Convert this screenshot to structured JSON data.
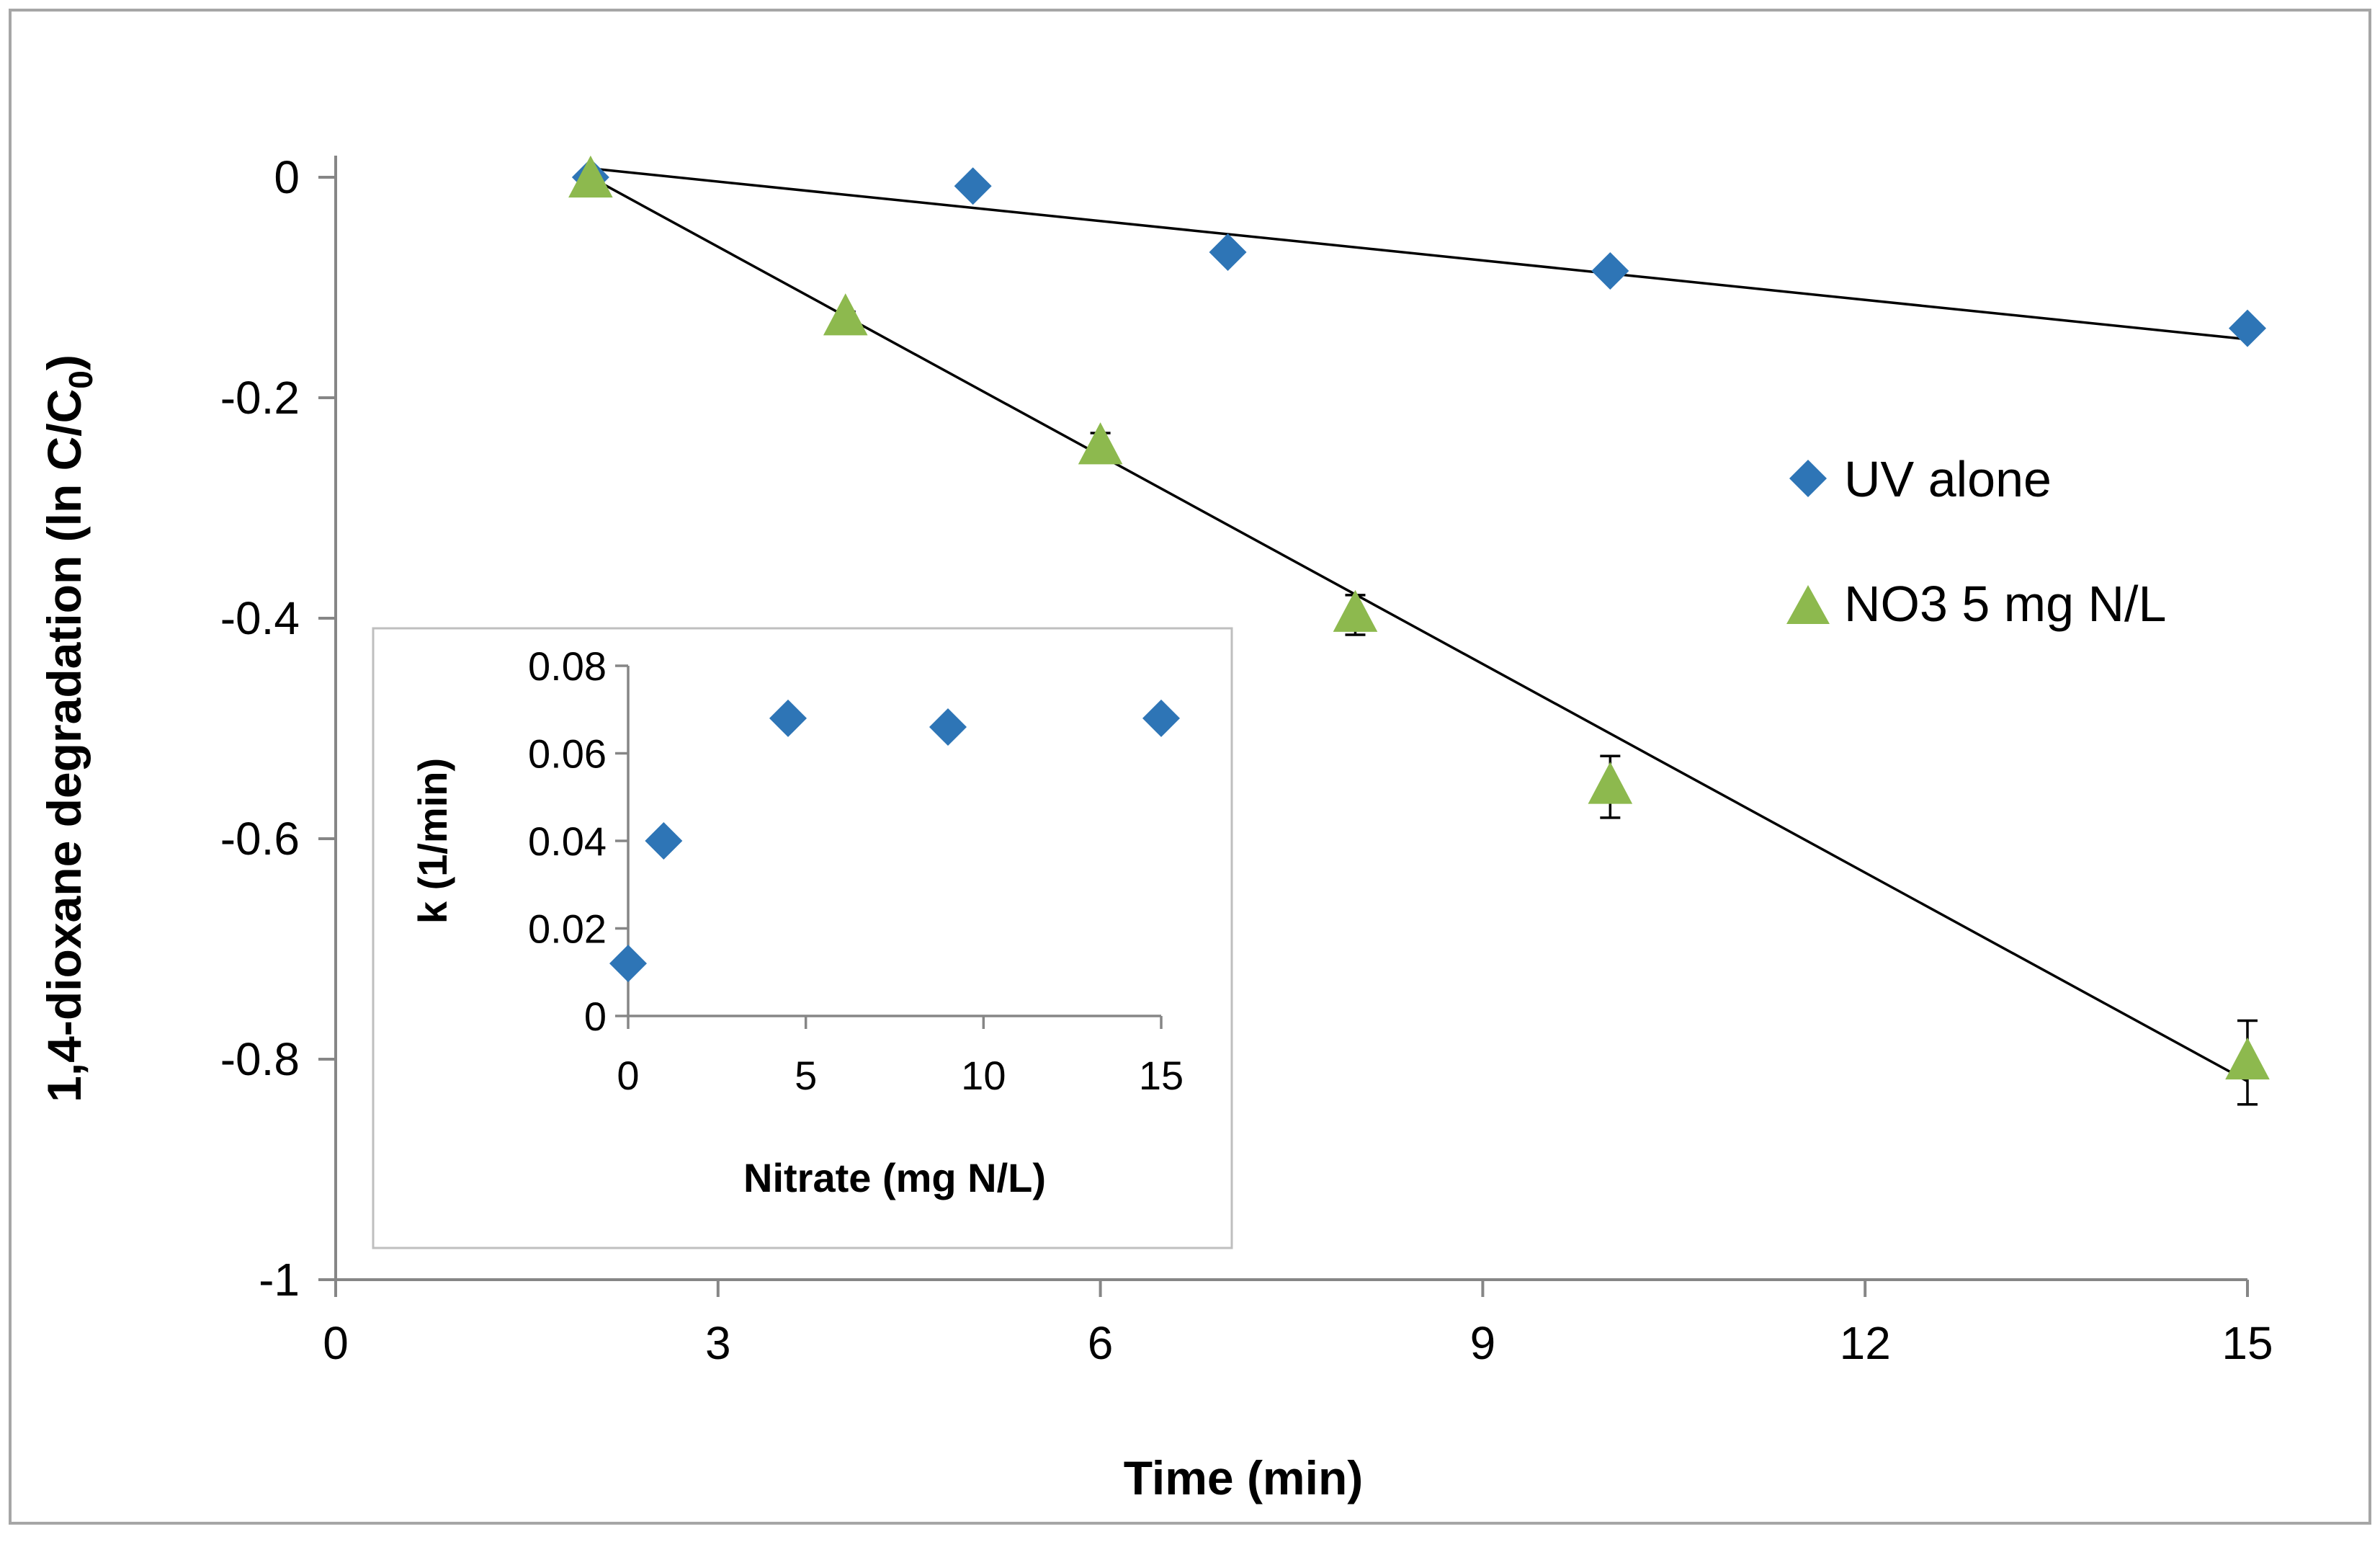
{
  "chart_data": [
    {
      "id": "main",
      "type": "scatter",
      "title": "",
      "xlabel": "Time (min)",
      "ylabel": "1,4-dioxane degradation  (ln C/C",
      "ylabel_subscript": "0",
      "ylabel_suffix": ")",
      "xlim": [
        0,
        15
      ],
      "ylim": [
        -1,
        0
      ],
      "xticks": [
        0,
        3,
        6,
        9,
        12,
        15
      ],
      "yticks": [
        0,
        -0.2,
        -0.4,
        -0.6,
        -0.8,
        -1
      ],
      "xtick_labels": [
        "0",
        "3",
        "6",
        "9",
        "12",
        "15"
      ],
      "ytick_labels": [
        "0",
        "-0.2",
        "-0.4",
        "-0.6",
        "-0.8",
        "-1"
      ],
      "grid": false,
      "legend_position": "right",
      "series": [
        {
          "name": "UV alone",
          "marker": "diamond",
          "color": "#2E75B6",
          "x": [
            2,
            5,
            7,
            10,
            15
          ],
          "y": [
            0,
            -0.008,
            -0.068,
            -0.085,
            -0.137
          ],
          "trendline": {
            "x": [
              2,
              15
            ],
            "y": [
              0.008,
              -0.147
            ]
          }
        },
        {
          "name": "NO3 5 mg N/L",
          "marker": "triangle",
          "color": "#8DB94E",
          "x": [
            2,
            4,
            6,
            8,
            10,
            15
          ],
          "y": [
            -0.003,
            -0.128,
            -0.245,
            -0.397,
            -0.553,
            -0.803
          ],
          "error": [
            0.004,
            0.006,
            0.013,
            0.018,
            0.028,
            0.038
          ],
          "trendline": {
            "x": [
              2,
              15
            ],
            "y": [
              0,
              -0.82
            ]
          }
        }
      ]
    },
    {
      "id": "inset",
      "type": "scatter",
      "title": "",
      "xlabel": "Nitrate (mg N/L)",
      "ylabel": "k (1/min)",
      "xlim": [
        0,
        15
      ],
      "ylim": [
        0,
        0.08
      ],
      "xticks": [
        0,
        5,
        10,
        15
      ],
      "yticks": [
        0,
        0.02,
        0.04,
        0.06,
        0.08
      ],
      "xtick_labels": [
        "0",
        "5",
        "10",
        "15"
      ],
      "ytick_labels": [
        "0",
        "0.02",
        "0.04",
        "0.06",
        "0.08"
      ],
      "grid": false,
      "series": [
        {
          "name": "k",
          "marker": "diamond",
          "color": "#2E75B6",
          "x": [
            0,
            1,
            4.5,
            9,
            15
          ],
          "y": [
            0.012,
            0.04,
            0.068,
            0.066,
            0.068
          ]
        }
      ]
    }
  ]
}
